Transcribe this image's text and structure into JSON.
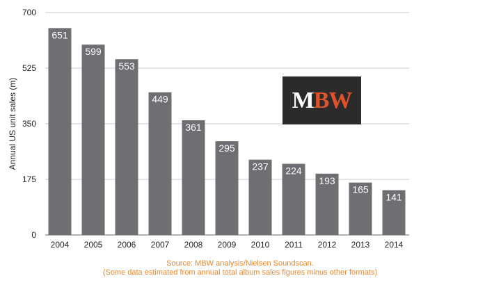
{
  "chart_data": {
    "type": "bar",
    "categories": [
      "2004",
      "2005",
      "2006",
      "2007",
      "2008",
      "2009",
      "2010",
      "2011",
      "2012",
      "2013",
      "2014"
    ],
    "values": [
      651,
      599,
      553,
      449,
      361,
      295,
      237,
      224,
      193,
      165,
      141
    ],
    "data_labels": [
      "651",
      "599",
      "553",
      "449",
      "361",
      "295",
      "237",
      "224",
      "193",
      "165",
      "141"
    ],
    "title": "",
    "xlabel": "",
    "ylabel": "Annual US unit sales (m)",
    "ylim": [
      0,
      700
    ],
    "yticks": [
      0,
      175,
      350,
      525,
      700
    ],
    "ytick_labels": [
      "0",
      "175",
      "350",
      "525",
      "700"
    ],
    "grid": true,
    "bar_color": "#6f6f73"
  },
  "logo": {
    "text_m": "M",
    "text_bw": "BW",
    "background": "#2b2b2b",
    "accent_color": "#e0522b"
  },
  "source": {
    "line1": "Source: MBW analysis/Nielsen Soundscan.",
    "line2": "(Some data estimated from annual total album sales figures minus other formats)",
    "color": "#e3862f"
  }
}
